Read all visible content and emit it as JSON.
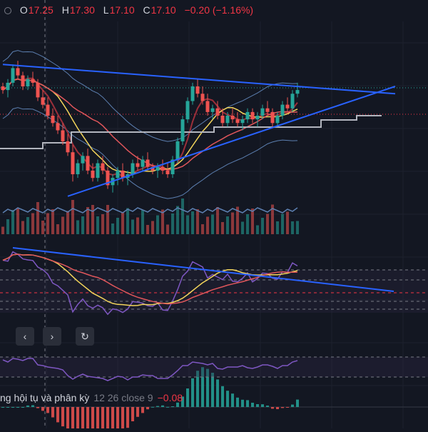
{
  "ohlc": {
    "open_label": "O",
    "open": "17.25",
    "high_label": "H",
    "high": "17.30",
    "low_label": "L",
    "low": "17.10",
    "close_label": "C",
    "close": "17.10",
    "change": "−0.20 (−1.16%)"
  },
  "macd_legend": {
    "name": "ng hội tụ và phân kỳ",
    "params": "12 26 close 9",
    "value": "−0.08"
  },
  "nav": {
    "prev_icon": "‹",
    "next_icon": "›",
    "reset_icon": "↻"
  },
  "colors": {
    "background": "#131722",
    "up": "#26a69a",
    "down": "#ef5350",
    "trendline": "#2962ff",
    "ma_yellow": "#f3d55b",
    "ma_red": "#e0565b",
    "ichimoku": "#9b2f3a",
    "bollinger": "#5c7fb0",
    "purple": "#7e57c2"
  },
  "chart_data": {
    "type": "candlestick",
    "symbol_values_note": "",
    "candles": [
      [
        17.2,
        17.3,
        17.0,
        17.1
      ],
      [
        17.1,
        17.4,
        16.9,
        17.3
      ],
      [
        17.3,
        17.8,
        17.2,
        17.7
      ],
      [
        17.7,
        17.9,
        17.4,
        17.5
      ],
      [
        17.5,
        17.6,
        17.1,
        17.2
      ],
      [
        17.2,
        17.5,
        17.1,
        17.4
      ],
      [
        17.4,
        17.6,
        17.2,
        17.3
      ],
      [
        17.3,
        17.4,
        16.8,
        16.9
      ],
      [
        16.9,
        17.1,
        16.6,
        16.7
      ],
      [
        16.7,
        16.9,
        16.3,
        16.4
      ],
      [
        16.4,
        16.6,
        16.1,
        16.2
      ],
      [
        16.2,
        16.4,
        15.9,
        16.0
      ],
      [
        16.0,
        16.2,
        15.6,
        15.7
      ],
      [
        15.7,
        15.9,
        15.3,
        15.4
      ],
      [
        15.4,
        15.6,
        14.6,
        14.8
      ],
      [
        14.8,
        15.2,
        14.7,
        15.1
      ],
      [
        15.1,
        15.4,
        14.9,
        15.3
      ],
      [
        15.3,
        15.5,
        14.8,
        14.9
      ],
      [
        14.9,
        15.1,
        14.6,
        14.7
      ],
      [
        14.7,
        15.2,
        14.6,
        15.1
      ],
      [
        15.1,
        15.3,
        14.8,
        14.9
      ],
      [
        14.9,
        15.0,
        14.4,
        14.5
      ],
      [
        14.5,
        14.8,
        14.3,
        14.7
      ],
      [
        14.7,
        15.0,
        14.5,
        14.9
      ],
      [
        14.9,
        15.1,
        14.6,
        14.7
      ],
      [
        14.7,
        14.9,
        14.5,
        14.8
      ],
      [
        14.8,
        15.2,
        14.7,
        15.1
      ],
      [
        15.1,
        15.3,
        14.9,
        15.0
      ],
      [
        15.0,
        15.3,
        14.9,
        15.2
      ],
      [
        15.2,
        15.4,
        14.9,
        15.0
      ],
      [
        15.0,
        15.1,
        14.8,
        14.9
      ],
      [
        14.9,
        15.1,
        14.7,
        15.0
      ],
      [
        15.0,
        15.2,
        14.8,
        14.9
      ],
      [
        14.9,
        15.1,
        14.7,
        14.8
      ],
      [
        14.8,
        15.3,
        14.7,
        15.2
      ],
      [
        15.2,
        15.8,
        15.1,
        15.7
      ],
      [
        15.7,
        16.4,
        15.6,
        16.3
      ],
      [
        16.3,
        16.9,
        16.2,
        16.8
      ],
      [
        16.8,
        17.3,
        16.7,
        17.2
      ],
      [
        17.2,
        17.4,
        16.9,
        17.0
      ],
      [
        17.0,
        17.2,
        16.7,
        16.8
      ],
      [
        16.8,
        17.0,
        16.4,
        16.5
      ],
      [
        16.5,
        16.7,
        16.3,
        16.6
      ],
      [
        16.6,
        16.8,
        16.3,
        16.4
      ],
      [
        16.4,
        16.6,
        16.1,
        16.2
      ],
      [
        16.2,
        16.5,
        16.1,
        16.4
      ],
      [
        16.4,
        16.6,
        16.2,
        16.3
      ],
      [
        16.3,
        16.5,
        16.1,
        16.2
      ],
      [
        16.2,
        16.4,
        16.0,
        16.3
      ],
      [
        16.3,
        16.6,
        16.2,
        16.5
      ],
      [
        16.5,
        16.6,
        16.2,
        16.3
      ],
      [
        16.3,
        16.5,
        16.1,
        16.4
      ],
      [
        16.4,
        16.7,
        16.3,
        16.6
      ],
      [
        16.6,
        16.8,
        16.4,
        16.5
      ],
      [
        16.5,
        16.6,
        16.1,
        16.2
      ],
      [
        16.2,
        16.5,
        16.1,
        16.4
      ],
      [
        16.4,
        16.8,
        16.3,
        16.7
      ],
      [
        16.7,
        16.9,
        16.5,
        16.6
      ],
      [
        16.6,
        17.1,
        16.5,
        17.0
      ],
      [
        17.0,
        17.3,
        16.9,
        17.1
      ]
    ],
    "trendline_upper": [
      [
        0,
        17.8
      ],
      [
        70,
        17.0
      ]
    ],
    "trendline_lower": [
      [
        13,
        14.2
      ],
      [
        70,
        17.2
      ]
    ]
  }
}
